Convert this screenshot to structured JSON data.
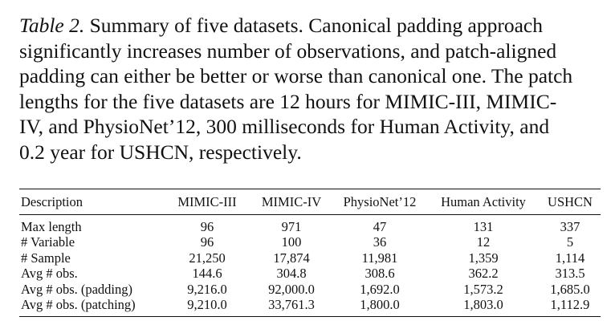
{
  "caption": {
    "label": "Table 2.",
    "line1_rest": " Summary of five datasets. Canonical padding approach",
    "line2": "significantly increases number of observations, and patch-aligned",
    "line3": "padding can either be better or worse than canonical one. The patch",
    "line4": "lengths for the five datasets are 12 hours for MIMIC-III, MIMIC-",
    "line5": "IV, and PhysioNet’12, 300 milliseconds for Human Activity, and",
    "line6": "0.2 year for USHCN, respectively."
  },
  "table": {
    "headers": [
      "Description",
      "MIMIC-III",
      "MIMIC-IV",
      "PhysioNet’12",
      "Human Activity",
      "USHCN"
    ],
    "rows": [
      [
        "Max length",
        "96",
        "971",
        "47",
        "131",
        "337"
      ],
      [
        "# Variable",
        "96",
        "100",
        "36",
        "12",
        "5"
      ],
      [
        "# Sample",
        "21,250",
        "17,874",
        "11,981",
        "1,359",
        "1,114"
      ],
      [
        "Avg # obs.",
        "144.6",
        "304.8",
        "308.6",
        "362.2",
        "313.5"
      ],
      [
        "Avg # obs. (padding)",
        "9,216.0",
        "92,000.0",
        "1,692.0",
        "1,573.2",
        "1,685.0"
      ],
      [
        "Avg # obs. (patching)",
        "9,210.0",
        "33,761.3",
        "1,800.0",
        "1,803.0",
        "1,112.9"
      ]
    ]
  }
}
